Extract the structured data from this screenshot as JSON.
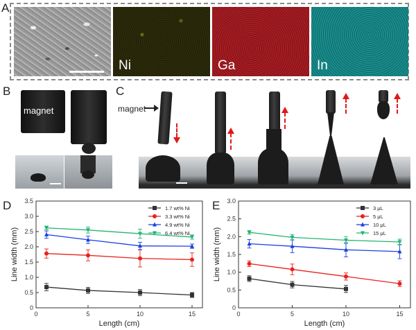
{
  "panel_labels": {
    "a": "A",
    "b": "B",
    "c": "C",
    "d": "D",
    "e": "E"
  },
  "panel_a": {
    "tiles": [
      {
        "label": "",
        "kind": "sem"
      },
      {
        "label": "Ni",
        "kind": "ni"
      },
      {
        "label": "Ga",
        "kind": "ga"
      },
      {
        "label": "In",
        "kind": "in"
      }
    ]
  },
  "panel_b": {
    "magnet_label": "magnet"
  },
  "panel_c": {
    "magnet_label": "magnet"
  },
  "colors": {
    "black": "#333333",
    "red": "#e8221e",
    "blue": "#1a3fe0",
    "green": "#22b573",
    "arrow": "#e01818"
  },
  "chart_data": [
    {
      "type": "line",
      "panel": "D",
      "xlabel": "Length (cm)",
      "ylabel": "Line width (mm)",
      "xlim": [
        0,
        16
      ],
      "ylim": [
        0,
        3.5
      ],
      "xticks": [
        0,
        5,
        10,
        15
      ],
      "yticks": [
        0,
        0.5,
        1.0,
        1.5,
        2.0,
        2.5,
        3.0,
        3.5
      ],
      "ytick_labels": [
        "0",
        "0.5",
        "1.0",
        "1.5",
        "2.0",
        "2.5",
        "3.0",
        "3.5"
      ],
      "xtick_labels": [
        "0",
        "5",
        "10",
        "15"
      ],
      "x": [
        1,
        5,
        10,
        15
      ],
      "legend_position": "top-right",
      "series": [
        {
          "name": "1.7 wt% Ni",
          "color": "#333333",
          "marker": "square",
          "values": [
            0.68,
            0.57,
            0.5,
            0.42
          ],
          "errors": [
            0.12,
            0.1,
            0.1,
            0.08
          ]
        },
        {
          "name": "3.3 wt% Ni",
          "color": "#e8221e",
          "marker": "circle",
          "values": [
            1.78,
            1.72,
            1.62,
            1.58
          ],
          "errors": [
            0.15,
            0.18,
            0.28,
            0.22
          ]
        },
        {
          "name": "4.9 wt% Ni",
          "color": "#1a3fe0",
          "marker": "triangle-up",
          "values": [
            2.4,
            2.23,
            2.03,
            2.02
          ],
          "errors": [
            0.12,
            0.12,
            0.12,
            0.07
          ]
        },
        {
          "name": "6.4 wt% Ni",
          "color": "#22b573",
          "marker": "triangle-down",
          "values": [
            2.62,
            2.55,
            2.43,
            2.32
          ],
          "errors": [
            0.06,
            0.1,
            0.15,
            0.07
          ]
        }
      ]
    },
    {
      "type": "line",
      "panel": "E",
      "xlabel": "Length (cm)",
      "ylabel": "Line width (mm)",
      "xlim": [
        0,
        16
      ],
      "ylim": [
        0,
        3.0
      ],
      "xticks": [
        0,
        5,
        10,
        15
      ],
      "yticks": [
        0,
        0.5,
        1.0,
        1.5,
        2.0,
        2.5,
        3.0
      ],
      "ytick_labels": [
        "0",
        "0.5",
        "1.0",
        "1.5",
        "2.0",
        "2.5",
        "3.0"
      ],
      "xtick_labels": [
        "0",
        "5",
        "10",
        "15"
      ],
      "x": [
        1,
        5,
        10,
        15
      ],
      "legend_position": "top-right",
      "series": [
        {
          "name": "3 μL",
          "color": "#333333",
          "marker": "square",
          "x": [
            1,
            5,
            10
          ],
          "values": [
            0.82,
            0.65,
            0.53
          ],
          "errors": [
            0.08,
            0.09,
            0.1
          ]
        },
        {
          "name": "5 μL",
          "color": "#e8221e",
          "marker": "circle",
          "values": [
            1.24,
            1.08,
            0.88,
            0.68
          ],
          "errors": [
            0.08,
            0.15,
            0.1,
            0.08
          ]
        },
        {
          "name": "10 μL",
          "color": "#1a3fe0",
          "marker": "triangle-up",
          "values": [
            1.8,
            1.73,
            1.63,
            1.58
          ],
          "errors": [
            0.12,
            0.18,
            0.2,
            0.2
          ]
        },
        {
          "name": "15 μL",
          "color": "#22b573",
          "marker": "triangle-down",
          "values": [
            2.12,
            1.98,
            1.9,
            1.85
          ],
          "errors": [
            0.05,
            0.08,
            0.1,
            0.08
          ]
        }
      ]
    }
  ]
}
